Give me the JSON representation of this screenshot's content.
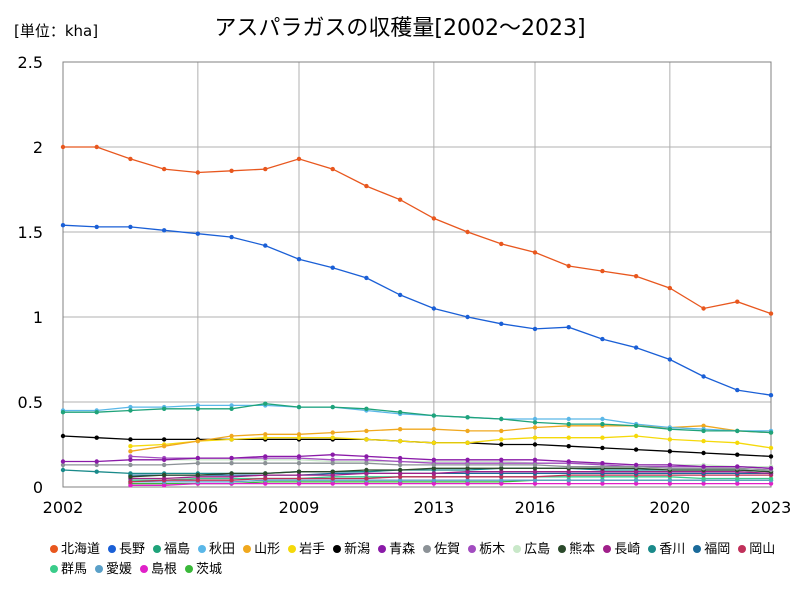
{
  "chart_data": {
    "type": "line",
    "title": "アスパラガスの収穫量[2002～2023]",
    "unit_label": "[単位：kha]",
    "xlim": [
      2002,
      2023
    ],
    "ylim": [
      0,
      2.5
    ],
    "x_ticks": [
      2002,
      2006,
      2009,
      2013,
      2016,
      2020,
      2023
    ],
    "y_ticks": [
      0,
      0.5,
      1,
      1.5,
      2,
      2.5
    ],
    "y_tick_labels": [
      "0",
      "0.5",
      "1",
      "1.5",
      "2",
      "2.5"
    ],
    "grid": true,
    "legend_position": "bottom",
    "series": [
      {
        "name": "北海道",
        "color": "#e8571e",
        "x": [
          2002,
          2003,
          2004,
          2005,
          2006,
          2007,
          2008,
          2009,
          2010,
          2011,
          2012,
          2013,
          2014,
          2015,
          2016,
          2017,
          2018,
          2019,
          2020,
          2021,
          2022,
          2023
        ],
        "values": [
          2.0,
          2.0,
          1.93,
          1.87,
          1.85,
          1.86,
          1.87,
          1.93,
          1.87,
          1.77,
          1.69,
          1.58,
          1.5,
          1.43,
          1.38,
          1.3,
          1.27,
          1.24,
          1.17,
          1.05,
          1.09,
          1.02
        ]
      },
      {
        "name": "長野",
        "color": "#1a5fd6",
        "x": [
          2002,
          2003,
          2004,
          2005,
          2006,
          2007,
          2008,
          2009,
          2010,
          2011,
          2012,
          2013,
          2014,
          2015,
          2016,
          2017,
          2018,
          2019,
          2020,
          2021,
          2022,
          2023
        ],
        "values": [
          1.54,
          1.53,
          1.53,
          1.51,
          1.49,
          1.47,
          1.42,
          1.34,
          1.29,
          1.23,
          1.13,
          1.05,
          1.0,
          0.96,
          0.93,
          0.94,
          0.87,
          0.82,
          0.75,
          0.65,
          0.57,
          0.54
        ]
      },
      {
        "name": "福島",
        "color": "#1fa37a",
        "x": [
          2002,
          2003,
          2004,
          2005,
          2006,
          2007,
          2008,
          2009,
          2010,
          2011,
          2012,
          2013,
          2014,
          2015,
          2016,
          2017,
          2018,
          2019,
          2020,
          2021,
          2022,
          2023
        ],
        "values": [
          0.44,
          0.44,
          0.45,
          0.46,
          0.46,
          0.46,
          0.49,
          0.47,
          0.47,
          0.46,
          0.44,
          0.42,
          0.41,
          0.4,
          0.38,
          0.37,
          0.37,
          0.36,
          0.34,
          0.33,
          0.33,
          0.32
        ]
      },
      {
        "name": "秋田",
        "color": "#5ab7e8",
        "x": [
          2002,
          2003,
          2004,
          2005,
          2006,
          2007,
          2008,
          2009,
          2010,
          2011,
          2012,
          2013,
          2014,
          2015,
          2016,
          2017,
          2018,
          2019,
          2020,
          2021,
          2022,
          2023
        ],
        "values": [
          0.45,
          0.45,
          0.47,
          0.47,
          0.48,
          0.48,
          0.48,
          0.47,
          0.47,
          0.45,
          0.43,
          0.42,
          0.41,
          0.4,
          0.4,
          0.4,
          0.4,
          0.37,
          0.35,
          0.34,
          0.33,
          0.33
        ]
      },
      {
        "name": "山形",
        "color": "#f0a81e",
        "x": [
          2004,
          2005,
          2006,
          2007,
          2008,
          2009,
          2010,
          2011,
          2012,
          2013,
          2014,
          2015,
          2016,
          2017,
          2018,
          2019,
          2020,
          2021,
          2022,
          2023
        ],
        "values": [
          0.21,
          0.24,
          0.27,
          0.3,
          0.31,
          0.31,
          0.32,
          0.33,
          0.34,
          0.34,
          0.33,
          0.33,
          0.35,
          0.36,
          0.36,
          0.36,
          0.35,
          0.36,
          0.33,
          0.32
        ]
      },
      {
        "name": "岩手",
        "color": "#f5d90a",
        "x": [
          2004,
          2005,
          2006,
          2007,
          2008,
          2009,
          2010,
          2011,
          2012,
          2013,
          2014,
          2015,
          2016,
          2017,
          2018,
          2019,
          2020,
          2021,
          2022,
          2023
        ],
        "values": [
          0.24,
          0.25,
          0.27,
          0.28,
          0.29,
          0.29,
          0.29,
          0.28,
          0.27,
          0.26,
          0.26,
          0.28,
          0.29,
          0.29,
          0.29,
          0.3,
          0.28,
          0.27,
          0.26,
          0.23
        ]
      },
      {
        "name": "新潟",
        "color": "#000000",
        "x": [
          2002,
          2003,
          2004,
          2005,
          2006,
          2007,
          2008,
          2009,
          2010,
          2011,
          2012,
          2013,
          2014,
          2015,
          2016,
          2017,
          2018,
          2019,
          2020,
          2021,
          2022,
          2023
        ],
        "values": [
          0.3,
          0.29,
          0.28,
          0.28,
          0.28,
          0.28,
          0.28,
          0.28,
          0.28,
          0.28,
          0.27,
          0.26,
          0.26,
          0.25,
          0.25,
          0.24,
          0.23,
          0.22,
          0.21,
          0.2,
          0.19,
          0.18
        ]
      },
      {
        "name": "青森",
        "color": "#8a1aa8",
        "x": [
          2002,
          2003,
          2004,
          2005,
          2006,
          2007,
          2008,
          2009,
          2010,
          2011,
          2012,
          2013,
          2014,
          2015,
          2016,
          2017,
          2018,
          2019,
          2020,
          2021,
          2022,
          2023
        ],
        "values": [
          0.15,
          0.15,
          0.16,
          0.16,
          0.17,
          0.17,
          0.18,
          0.18,
          0.19,
          0.18,
          0.17,
          0.16,
          0.16,
          0.16,
          0.16,
          0.15,
          0.14,
          0.13,
          0.13,
          0.12,
          0.12,
          0.11
        ]
      },
      {
        "name": "佐賀",
        "color": "#8c9297",
        "x": [
          2002,
          2003,
          2004,
          2005,
          2006,
          2007,
          2008,
          2009,
          2010,
          2011,
          2012,
          2013,
          2014,
          2015,
          2016,
          2017,
          2018,
          2019,
          2020,
          2021,
          2022,
          2023
        ],
        "values": [
          0.13,
          0.13,
          0.13,
          0.13,
          0.14,
          0.14,
          0.14,
          0.14,
          0.14,
          0.14,
          0.13,
          0.13,
          0.13,
          0.13,
          0.13,
          0.12,
          0.12,
          0.12,
          0.11,
          0.11,
          0.11,
          0.1
        ]
      },
      {
        "name": "栃木",
        "color": "#a24cc0",
        "x": [
          2004,
          2005,
          2006,
          2007,
          2008,
          2009,
          2010,
          2011,
          2012,
          2013,
          2014,
          2015,
          2016,
          2017,
          2018,
          2019,
          2020,
          2021,
          2022,
          2023
        ],
        "values": [
          0.18,
          0.17,
          0.17,
          0.17,
          0.17,
          0.17,
          0.16,
          0.16,
          0.15,
          0.14,
          0.14,
          0.14,
          0.14,
          0.14,
          0.13,
          0.12,
          0.12,
          0.12,
          0.12,
          0.11
        ]
      },
      {
        "name": "広島",
        "color": "#c9e8c9",
        "x": [
          2004,
          2005,
          2006,
          2007,
          2008,
          2009,
          2010,
          2011,
          2012,
          2013,
          2014,
          2015,
          2016,
          2017,
          2018,
          2019,
          2020,
          2021,
          2022,
          2023
        ],
        "values": [
          0.16,
          0.16,
          0.16,
          0.16,
          0.16,
          0.16,
          0.15,
          0.15,
          0.15,
          0.15,
          0.15,
          0.15,
          0.14,
          0.14,
          0.14,
          0.13,
          0.13,
          0.13,
          0.12,
          0.12
        ]
      },
      {
        "name": "熊本",
        "color": "#2b4a2b",
        "x": [
          2004,
          2005,
          2006,
          2007,
          2008,
          2009,
          2010,
          2011,
          2012,
          2013,
          2014,
          2015,
          2016,
          2017,
          2018,
          2019,
          2020,
          2021,
          2022,
          2023
        ],
        "values": [
          0.06,
          0.07,
          0.07,
          0.08,
          0.08,
          0.09,
          0.09,
          0.1,
          0.1,
          0.11,
          0.11,
          0.11,
          0.11,
          0.11,
          0.11,
          0.11,
          0.1,
          0.1,
          0.1,
          0.09
        ]
      },
      {
        "name": "長崎",
        "color": "#a0208a",
        "x": [
          2004,
          2005,
          2006,
          2007,
          2008,
          2009,
          2010,
          2011,
          2012,
          2013,
          2014,
          2015,
          2016,
          2017,
          2018,
          2019,
          2020,
          2021,
          2022,
          2023
        ],
        "values": [
          0.05,
          0.05,
          0.06,
          0.06,
          0.07,
          0.07,
          0.07,
          0.08,
          0.08,
          0.08,
          0.09,
          0.09,
          0.09,
          0.09,
          0.09,
          0.09,
          0.09,
          0.09,
          0.09,
          0.08
        ]
      },
      {
        "name": "香川",
        "color": "#1a8a8a",
        "x": [
          2002,
          2003,
          2004,
          2005,
          2006,
          2007,
          2008,
          2009,
          2010,
          2011,
          2012,
          2013,
          2014,
          2015,
          2016,
          2017,
          2018,
          2019,
          2020,
          2021,
          2022,
          2023
        ],
        "values": [
          0.1,
          0.09,
          0.08,
          0.08,
          0.08,
          0.08,
          0.08,
          0.09,
          0.09,
          0.09,
          0.1,
          0.1,
          0.1,
          0.11,
          0.11,
          0.11,
          0.1,
          0.1,
          0.1,
          0.1,
          0.1,
          0.09
        ]
      },
      {
        "name": "福岡",
        "color": "#1a6a9a",
        "x": [
          2004,
          2005,
          2006,
          2007,
          2008,
          2009,
          2010,
          2011,
          2012,
          2013,
          2014,
          2015,
          2016,
          2017,
          2018,
          2019,
          2020,
          2021,
          2022,
          2023
        ],
        "values": [
          0.07,
          0.07,
          0.07,
          0.07,
          0.07,
          0.07,
          0.08,
          0.08,
          0.08,
          0.08,
          0.08,
          0.08,
          0.08,
          0.08,
          0.08,
          0.08,
          0.08,
          0.08,
          0.08,
          0.08
        ]
      },
      {
        "name": "岡山",
        "color": "#c0305a",
        "x": [
          2004,
          2005,
          2006,
          2007,
          2008,
          2009,
          2010,
          2011,
          2012,
          2013,
          2014,
          2015,
          2016,
          2017,
          2018,
          2019,
          2020,
          2021,
          2022,
          2023
        ],
        "values": [
          0.03,
          0.04,
          0.04,
          0.04,
          0.05,
          0.05,
          0.05,
          0.05,
          0.06,
          0.06,
          0.06,
          0.06,
          0.06,
          0.07,
          0.07,
          0.07,
          0.07,
          0.07,
          0.07,
          0.07
        ]
      },
      {
        "name": "群馬",
        "color": "#3acc8a",
        "x": [
          2004,
          2005,
          2006,
          2007,
          2008,
          2009,
          2010,
          2011,
          2012,
          2013,
          2014,
          2015,
          2016,
          2017,
          2018,
          2019,
          2020,
          2021,
          2022,
          2023
        ],
        "values": [
          0.04,
          0.04,
          0.05,
          0.05,
          0.05,
          0.05,
          0.06,
          0.06,
          0.06,
          0.06,
          0.06,
          0.06,
          0.06,
          0.06,
          0.06,
          0.06,
          0.06,
          0.05,
          0.05,
          0.05
        ]
      },
      {
        "name": "愛媛",
        "color": "#5aa0c8",
        "x": [
          2004,
          2005,
          2006,
          2007,
          2008,
          2009,
          2010,
          2011,
          2012,
          2013,
          2014,
          2015,
          2016,
          2017,
          2018,
          2019,
          2020,
          2021,
          2022,
          2023
        ],
        "values": [
          0.03,
          0.03,
          0.03,
          0.03,
          0.04,
          0.04,
          0.04,
          0.04,
          0.04,
          0.04,
          0.04,
          0.04,
          0.04,
          0.04,
          0.04,
          0.04,
          0.04,
          0.04,
          0.04,
          0.04
        ]
      },
      {
        "name": "島根",
        "color": "#e020c8",
        "x": [
          2004,
          2005,
          2006,
          2007,
          2008,
          2009,
          2010,
          2011,
          2012,
          2013,
          2014,
          2015,
          2016,
          2017,
          2018,
          2019,
          2020,
          2021,
          2022,
          2023
        ],
        "values": [
          0.01,
          0.01,
          0.02,
          0.02,
          0.02,
          0.02,
          0.02,
          0.02,
          0.02,
          0.02,
          0.02,
          0.02,
          0.02,
          0.02,
          0.02,
          0.02,
          0.02,
          0.02,
          0.02,
          0.02
        ]
      },
      {
        "name": "茨城",
        "color": "#3ab83a",
        "x": [
          2004,
          2005,
          2006,
          2007,
          2008,
          2009,
          2010,
          2011,
          2012,
          2013,
          2014,
          2015,
          2016,
          2017,
          2018,
          2019,
          2020,
          2021,
          2022,
          2023
        ],
        "values": [
          0.02,
          0.02,
          0.02,
          0.02,
          0.03,
          0.03,
          0.03,
          0.03,
          0.03,
          0.03,
          0.03,
          0.03,
          0.04,
          0.04,
          0.04,
          0.04,
          0.04,
          0.04,
          0.04,
          0.04
        ]
      }
    ]
  }
}
